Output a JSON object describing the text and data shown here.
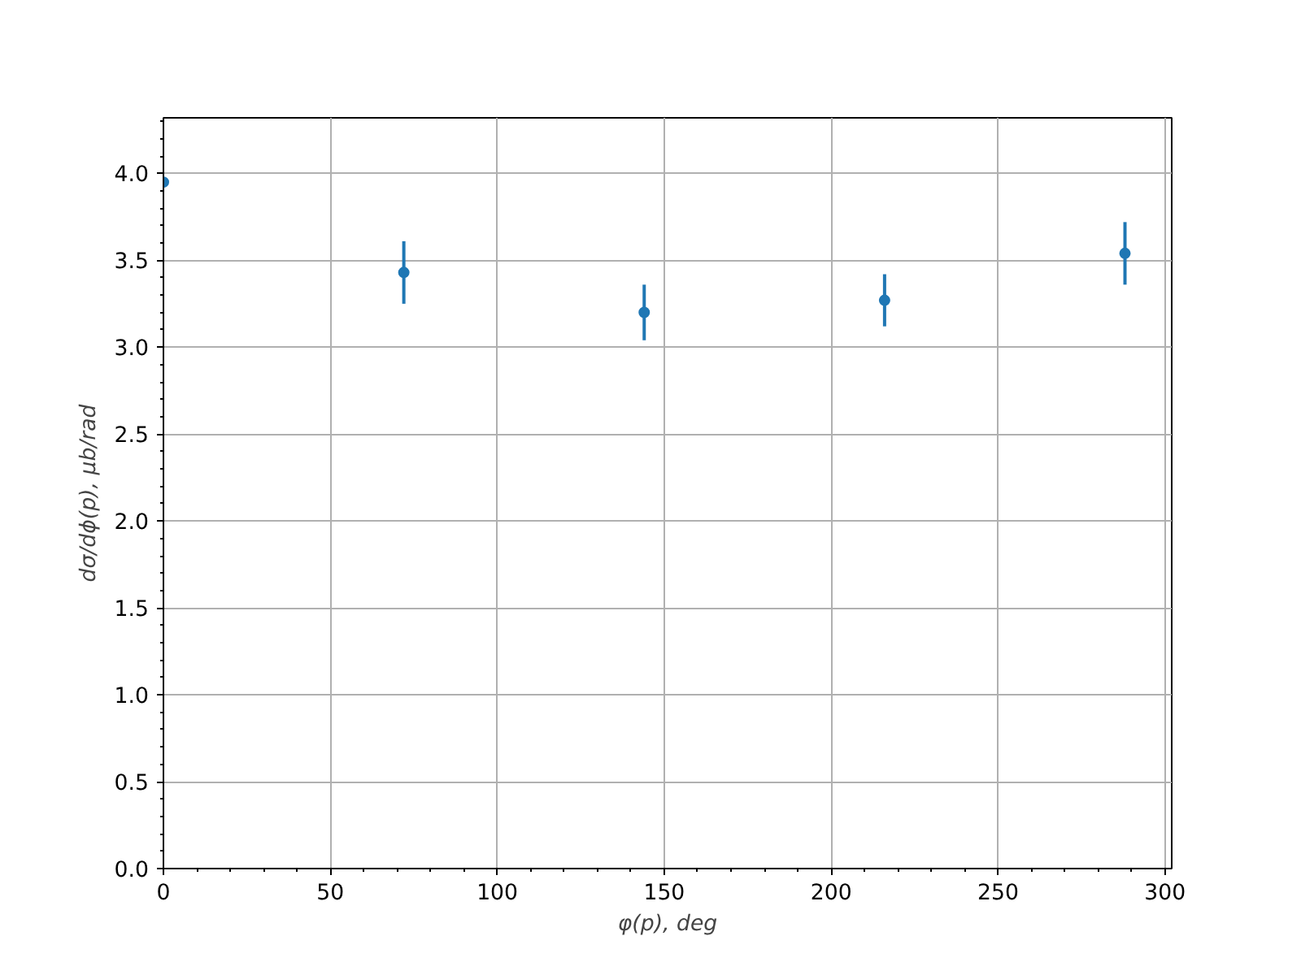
{
  "chart_data": {
    "type": "scatter",
    "xlabel": "φ(p), deg",
    "ylabel": "dσ/dϕ(p), μb/rad",
    "x": [
      0,
      72,
      144,
      216,
      288
    ],
    "series": [
      {
        "color": "#1f77b4",
        "values": [
          3.95,
          3.43,
          3.2,
          3.27,
          3.54
        ],
        "errors": [
          null,
          0.18,
          0.16,
          0.15,
          0.18
        ]
      }
    ],
    "xlim": [
      0,
      302
    ],
    "ylim": [
      0,
      4.32
    ],
    "xticks": [
      0,
      50,
      100,
      150,
      200,
      250,
      300
    ],
    "yticks": [
      {
        "value": 0,
        "label": "0.0"
      },
      {
        "value": 0.5,
        "label": "0.5"
      },
      {
        "value": 1,
        "label": "1.0"
      },
      {
        "value": 1.5,
        "label": "1.5"
      },
      {
        "value": 2,
        "label": "2.0"
      },
      {
        "value": 2.5,
        "label": "2.5"
      },
      {
        "value": 3,
        "label": "3.0"
      },
      {
        "value": 3.5,
        "label": "3.5"
      },
      {
        "value": 4,
        "label": "4.0"
      }
    ],
    "grid": true,
    "marker": "circle"
  }
}
